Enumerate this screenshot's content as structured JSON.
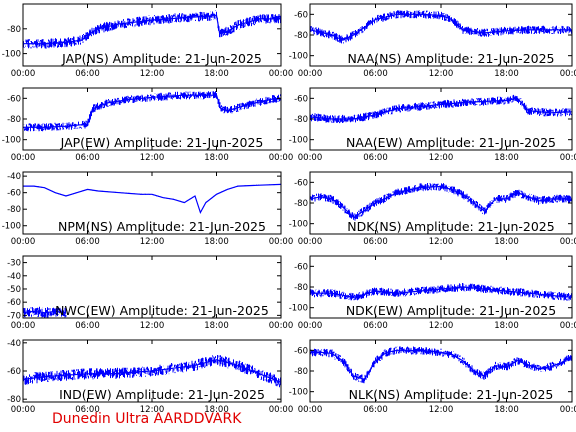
{
  "footer": "Dunedin Ultra AARDDVARK",
  "colors": {
    "trace": "#0000ff",
    "axis": "#000000",
    "footer": "#e00000",
    "background": "#ffffff"
  },
  "chart_data": [
    {
      "type": "line",
      "station": "JAP(NS)",
      "title": "JAP(NS) Amplitude: 21-Jun-2025",
      "x_ticks": [
        "00:00",
        "06:00",
        "12:00",
        "18:00",
        "00:00"
      ],
      "xlim": [
        0,
        24
      ],
      "y_ticks": [
        "-100",
        "-80"
      ],
      "ylim": [
        -110,
        -60
      ],
      "series": [
        {
          "x": [
            0,
            2,
            4,
            5.5,
            6,
            7,
            9,
            12,
            15,
            17,
            18,
            18.3,
            19,
            20,
            22,
            24
          ],
          "y": [
            -92,
            -92,
            -91,
            -89,
            -85,
            -80,
            -76,
            -73,
            -71,
            -70,
            -69,
            -84,
            -82,
            -77,
            -72,
            -72
          ]
        }
      ]
    },
    {
      "type": "line",
      "station": "NAA(NS)",
      "title": "NAA(NS) Amplitude: 21-Jun-2025",
      "x_ticks": [
        "00:00",
        "06:00",
        "12:00",
        "18:00",
        "00:00"
      ],
      "xlim": [
        0,
        24
      ],
      "y_ticks": [
        "-100",
        "-80",
        "-60"
      ],
      "ylim": [
        -110,
        -50
      ],
      "series": [
        {
          "x": [
            0,
            2,
            3,
            4,
            6,
            8,
            10,
            12,
            13,
            14,
            16,
            18,
            20,
            22,
            24
          ],
          "y": [
            -75,
            -80,
            -85,
            -80,
            -65,
            -60,
            -60,
            -61,
            -65,
            -75,
            -78,
            -76,
            -75,
            -75,
            -75
          ]
        }
      ]
    },
    {
      "type": "line",
      "station": "JAP(EW)",
      "title": "JAP(EW) Amplitude: 21-Jun-2025",
      "x_ticks": [
        "00:00",
        "06:00",
        "12:00",
        "18:00",
        "00:00"
      ],
      "xlim": [
        0,
        24
      ],
      "y_ticks": [
        "-100",
        "-80",
        "-60"
      ],
      "ylim": [
        -110,
        -50
      ],
      "series": [
        {
          "x": [
            0,
            2,
            4,
            6,
            6.5,
            8,
            10,
            12,
            15,
            17,
            18,
            18.4,
            19,
            21,
            23,
            24
          ],
          "y": [
            -88,
            -88,
            -87,
            -85,
            -70,
            -64,
            -61,
            -59,
            -57,
            -57,
            -57,
            -70,
            -72,
            -66,
            -61,
            -60
          ]
        }
      ]
    },
    {
      "type": "line",
      "station": "NAA(EW)",
      "title": "NAA(EW) Amplitude: 21-Jun-2025",
      "x_ticks": [
        "00:00",
        "06:00",
        "12:00",
        "18:00",
        "00:00"
      ],
      "xlim": [
        0,
        24
      ],
      "y_ticks": [
        "-100",
        "-80",
        "-60"
      ],
      "ylim": [
        -110,
        -50
      ],
      "series": [
        {
          "x": [
            0,
            2,
            4,
            6,
            8,
            10,
            12,
            14,
            16,
            18,
            19,
            20,
            22,
            24
          ],
          "y": [
            -78,
            -80,
            -80,
            -76,
            -70,
            -68,
            -66,
            -64,
            -63,
            -62,
            -60,
            -72,
            -74,
            -73
          ]
        }
      ]
    },
    {
      "type": "line",
      "station": "NPM(NS)",
      "title": "NPM(NS) Amplitude: 21-Jun-2025",
      "x_ticks": [
        "00:00",
        "06:00",
        "12:00",
        "18:00",
        "00:00"
      ],
      "xlim": [
        0,
        24
      ],
      "y_ticks": [
        "-100",
        "-80",
        "-60",
        "-40"
      ],
      "ylim": [
        -110,
        -35
      ],
      "series": [
        {
          "x": [
            0,
            1,
            2,
            3,
            4,
            5,
            6,
            7,
            9,
            11,
            12,
            13,
            14,
            15,
            16,
            16.5,
            17,
            18,
            19,
            20,
            22,
            24
          ],
          "y": [
            -52,
            -52,
            -54,
            -60,
            -64,
            -60,
            -56,
            -58,
            -60,
            -62,
            -62,
            -66,
            -68,
            -72,
            -64,
            -84,
            -72,
            -62,
            -56,
            -52,
            -51,
            -50
          ]
        }
      ]
    },
    {
      "type": "line",
      "station": "NDK(NS)",
      "title": "NDK(NS) Amplitude: 21-Jun-2025",
      "x_ticks": [
        "00:00",
        "06:00",
        "12:00",
        "18:00",
        "00:00"
      ],
      "xlim": [
        0,
        24
      ],
      "y_ticks": [
        "-100",
        "-80",
        "-60"
      ],
      "ylim": [
        -110,
        -50
      ],
      "series": [
        {
          "x": [
            0,
            1,
            2,
            3,
            4,
            6,
            8,
            10,
            12,
            13,
            14,
            15,
            16,
            17,
            18,
            19,
            20,
            21,
            22,
            24
          ],
          "y": [
            -76,
            -74,
            -76,
            -84,
            -94,
            -80,
            -70,
            -65,
            -64,
            -67,
            -72,
            -80,
            -88,
            -76,
            -76,
            -70,
            -74,
            -78,
            -76,
            -76
          ]
        }
      ]
    },
    {
      "type": "line",
      "station": "NWC(EW)",
      "title": "NWC(EW) Amplitude: 21-Jun-2025",
      "x_ticks": [
        "00:00",
        "06:00",
        "12:00",
        "18:00",
        "00:00"
      ],
      "xlim": [
        0,
        24
      ],
      "y_ticks": [
        "-70",
        "-60",
        "-50",
        "-40",
        "-30"
      ],
      "ylim": [
        -72,
        -25
      ],
      "series": [
        {
          "x": [
            0,
            1,
            2,
            3,
            4
          ],
          "y": [
            -68,
            -67,
            -68,
            -67,
            -68
          ]
        }
      ]
    },
    {
      "type": "line",
      "station": "NDK(EW)",
      "title": "NDK(EW) Amplitude: 21-Jun-2025",
      "x_ticks": [
        "00:00",
        "06:00",
        "12:00",
        "18:00",
        "00:00"
      ],
      "xlim": [
        0,
        24
      ],
      "y_ticks": [
        "-100",
        "-80",
        "-60"
      ],
      "ylim": [
        -110,
        -50
      ],
      "series": [
        {
          "x": [
            0,
            2,
            4,
            6,
            8,
            10,
            12,
            14,
            16,
            18,
            20,
            22,
            24
          ],
          "y": [
            -86,
            -86,
            -90,
            -84,
            -86,
            -84,
            -82,
            -80,
            -82,
            -84,
            -86,
            -88,
            -90
          ]
        }
      ]
    },
    {
      "type": "line",
      "station": "IND(EW)",
      "title": "IND(EW) Amplitude: 21-Jun-2025",
      "x_ticks": [
        "00:00",
        "06:00",
        "12:00",
        "18:00",
        "00:00"
      ],
      "xlim": [
        0,
        24
      ],
      "y_ticks": [
        "-80",
        "-60",
        "-40"
      ],
      "ylim": [
        -82,
        -38
      ],
      "series": [
        {
          "x": [
            0,
            2,
            4,
            6,
            8,
            10,
            12,
            14,
            16,
            18,
            20,
            22,
            24
          ],
          "y": [
            -66,
            -64,
            -63,
            -62,
            -62,
            -61,
            -60,
            -58,
            -56,
            -52,
            -56,
            -62,
            -68
          ]
        }
      ]
    },
    {
      "type": "line",
      "station": "NLK(NS)",
      "title": "NLK(NS) Amplitude: 21-Jun-2025",
      "x_ticks": [
        "00:00",
        "06:00",
        "12:00",
        "18:00",
        "00:00"
      ],
      "xlim": [
        0,
        24
      ],
      "y_ticks": [
        "-100",
        "-80",
        "-60"
      ],
      "ylim": [
        -110,
        -50
      ],
      "series": [
        {
          "x": [
            0,
            1,
            2,
            3,
            4,
            5,
            6,
            7,
            8,
            9,
            11,
            12,
            13,
            14,
            15,
            16,
            17,
            18,
            19,
            20,
            21,
            22,
            23,
            24
          ],
          "y": [
            -62,
            -62,
            -63,
            -70,
            -85,
            -88,
            -70,
            -62,
            -60,
            -60,
            -61,
            -62,
            -64,
            -70,
            -80,
            -85,
            -75,
            -76,
            -70,
            -74,
            -78,
            -76,
            -72,
            -66
          ]
        }
      ]
    }
  ]
}
